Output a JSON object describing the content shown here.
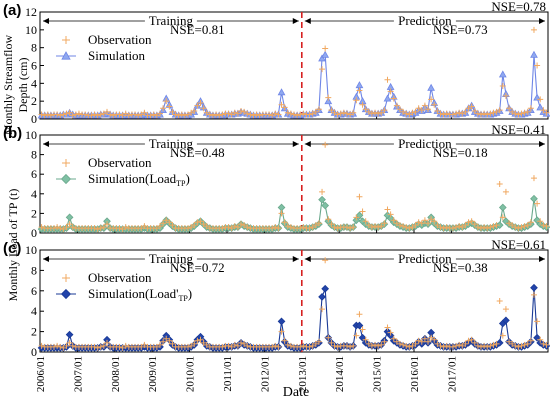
{
  "figure": {
    "xlabel": "Date",
    "ylabel_a": "Monthly Streamflow",
    "ylabel_a2": "Depth (cm)",
    "ylabel_bc": "Monthly Load of TP (t)",
    "x_ticks": [
      "2006/01",
      "2007/01",
      "2008/01",
      "2009/01",
      "2010/01",
      "2011/01",
      "2012/01",
      "2013/01",
      "2014/01",
      "2015/01",
      "2016/01",
      "2017/01"
    ],
    "split_label_train": "Training",
    "split_label_pred": "Prediction",
    "colors": {
      "observation": "#f0a860",
      "sim_a_fill": "#8fa8f0",
      "sim_a_line": "#6f86e6",
      "sim_b_fill": "#7fc0a4",
      "sim_b_line": "#6aa88c",
      "sim_c_fill": "#2244aa",
      "sim_c_line": "#1a3a96",
      "split": "#d62020"
    }
  },
  "chart_data": [
    {
      "panel": "(a)",
      "type": "line",
      "ylim": [
        0,
        12
      ],
      "yticks": [
        0,
        2,
        4,
        6,
        8,
        10,
        12
      ],
      "nse_overall": "NSE=0.78",
      "nse_train": "NSE=0.81",
      "nse_pred": "NSE=0.73",
      "legend": [
        "Observation",
        "Simulation"
      ],
      "series": [
        {
          "name": "Observation",
          "values": [
            0.5,
            0.4,
            0.5,
            0.4,
            0.5,
            0.5,
            0.4,
            0.5,
            0.6,
            0.7,
            0.4,
            0.5,
            0.6,
            0.5,
            0.5,
            0.4,
            0.4,
            0.5,
            0.4,
            0.5,
            0.6,
            0.8,
            0.5,
            0.4,
            0.5,
            0.5,
            0.4,
            0.6,
            0.4,
            0.5,
            0.5,
            0.4,
            0.5,
            0.7,
            0.4,
            0.4,
            0.5,
            0.4,
            0.6,
            1.2,
            2.0,
            1.4,
            0.8,
            0.5,
            0.4,
            0.5,
            0.4,
            0.5,
            0.7,
            0.9,
            1.5,
            1.8,
            1.2,
            0.7,
            0.5,
            0.4,
            0.5,
            0.4,
            0.5,
            0.6,
            0.6,
            0.5,
            0.7,
            0.6,
            0.9,
            0.8,
            0.6,
            0.5,
            0.4,
            0.5,
            0.4,
            0.5,
            0.5,
            0.5,
            0.4,
            0.6,
            0.5,
            1.6,
            1.3,
            0.7,
            0.6,
            0.5,
            0.4,
            0.5,
            0.6,
            0.5,
            0.5,
            0.6,
            0.8,
            1.1,
            5.6,
            7.9,
            2.4,
            1.0,
            0.7,
            0.5,
            0.6,
            0.7,
            0.6,
            0.5,
            0.7,
            2.1,
            3.2,
            1.6,
            1.1,
            0.8,
            0.6,
            0.7,
            0.6,
            0.7,
            1.0,
            4.4,
            3.1,
            2.3,
            1.5,
            1.1,
            0.8,
            0.6,
            0.5,
            0.7,
            0.8,
            1.2,
            1.0,
            1.5,
            1.1,
            2.2,
            1.6,
            0.9,
            0.6,
            0.5,
            0.6,
            0.5,
            0.5,
            0.6,
            0.7,
            0.6,
            0.8,
            1.2,
            1.4,
            0.9,
            0.6,
            0.5,
            0.6,
            0.5,
            0.6,
            0.7,
            0.8,
            1.0,
            3.7,
            2.6,
            1.2,
            0.8,
            0.6,
            0.5,
            0.6,
            0.7,
            0.8,
            1.2,
            10.0,
            6.0,
            2.2,
            1.0,
            0.7
          ]
        },
        {
          "name": "Simulation",
          "values": [
            0.4,
            0.4,
            0.4,
            0.4,
            0.4,
            0.4,
            0.4,
            0.5,
            0.5,
            0.7,
            0.5,
            0.4,
            0.4,
            0.4,
            0.4,
            0.4,
            0.4,
            0.4,
            0.4,
            0.5,
            0.5,
            0.6,
            0.5,
            0.4,
            0.4,
            0.4,
            0.4,
            0.4,
            0.4,
            0.4,
            0.4,
            0.4,
            0.4,
            0.5,
            0.4,
            0.4,
            0.4,
            0.4,
            0.5,
            1.0,
            2.3,
            1.6,
            0.8,
            0.5,
            0.4,
            0.4,
            0.4,
            0.4,
            0.5,
            0.8,
            1.5,
            2.0,
            1.3,
            0.7,
            0.5,
            0.4,
            0.4,
            0.4,
            0.4,
            0.5,
            0.5,
            0.5,
            0.6,
            0.6,
            0.8,
            0.7,
            0.6,
            0.5,
            0.4,
            0.4,
            0.4,
            0.4,
            0.4,
            0.4,
            0.4,
            0.5,
            0.5,
            3.0,
            1.2,
            0.6,
            0.5,
            0.4,
            0.4,
            0.4,
            0.5,
            0.5,
            0.5,
            0.6,
            0.7,
            1.0,
            6.8,
            7.2,
            2.0,
            1.0,
            0.7,
            0.5,
            0.5,
            0.6,
            0.6,
            0.5,
            0.6,
            2.5,
            3.8,
            2.0,
            1.1,
            0.8,
            0.6,
            0.6,
            0.6,
            0.7,
            1.0,
            2.3,
            3.6,
            2.5,
            1.4,
            1.0,
            0.7,
            0.6,
            0.5,
            0.6,
            0.7,
            1.0,
            0.9,
            1.3,
            1.0,
            3.5,
            1.8,
            0.9,
            0.6,
            0.5,
            0.5,
            0.5,
            0.5,
            0.5,
            0.6,
            0.6,
            0.7,
            1.2,
            1.5,
            0.8,
            0.6,
            0.5,
            0.5,
            0.5,
            0.5,
            0.6,
            0.7,
            0.9,
            5.0,
            2.8,
            1.2,
            0.8,
            0.6,
            0.5,
            0.5,
            0.6,
            0.7,
            1.0,
            7.2,
            2.4,
            1.3,
            0.8,
            0.6
          ]
        }
      ]
    },
    {
      "panel": "(b)",
      "type": "line",
      "ylim": [
        0,
        10
      ],
      "yticks": [
        0,
        2,
        4,
        6,
        8,
        10
      ],
      "nse_overall": "NSE=0.41",
      "nse_train": "NSE=0.48",
      "nse_pred": "NSE=0.18",
      "legend": [
        "Observation",
        "Simulation(Load",
        "TP",
        ")"
      ],
      "series": [
        {
          "name": "Observation",
          "values": [
            0.6,
            0.5,
            0.5,
            0.5,
            0.5,
            0.6,
            0.5,
            0.4,
            0.6,
            0.9,
            0.6,
            0.5,
            0.5,
            0.5,
            0.5,
            0.5,
            0.5,
            0.5,
            0.4,
            0.5,
            0.6,
            0.9,
            0.5,
            0.5,
            0.5,
            0.5,
            0.4,
            0.6,
            0.5,
            0.5,
            0.5,
            0.5,
            0.5,
            0.7,
            0.5,
            0.5,
            0.5,
            0.5,
            0.7,
            1.0,
            1.3,
            1.1,
            0.8,
            0.5,
            0.5,
            0.5,
            0.5,
            0.5,
            0.6,
            0.8,
            1.1,
            1.2,
            0.9,
            0.7,
            0.5,
            0.5,
            0.5,
            0.5,
            0.5,
            0.6,
            0.6,
            0.5,
            0.7,
            0.6,
            0.9,
            0.8,
            0.6,
            0.5,
            0.5,
            0.5,
            0.5,
            0.5,
            0.5,
            0.5,
            0.5,
            0.6,
            0.5,
            2.0,
            1.1,
            0.7,
            0.6,
            0.5,
            0.5,
            0.5,
            0.6,
            0.5,
            0.5,
            0.6,
            0.8,
            1.0,
            4.2,
            9.0,
            1.4,
            0.9,
            0.6,
            0.5,
            0.6,
            0.6,
            0.6,
            0.5,
            0.6,
            1.6,
            3.7,
            2.2,
            1.2,
            0.8,
            0.6,
            0.7,
            0.6,
            0.7,
            1.0,
            2.4,
            1.9,
            1.3,
            1.0,
            0.8,
            0.7,
            0.6,
            0.5,
            0.6,
            0.8,
            1.1,
            1.0,
            1.3,
            1.0,
            1.4,
            1.2,
            0.8,
            0.6,
            0.5,
            0.6,
            0.5,
            0.5,
            0.6,
            0.7,
            0.6,
            0.8,
            1.1,
            1.2,
            0.9,
            0.6,
            0.5,
            0.6,
            0.5,
            0.6,
            0.7,
            0.8,
            5.0,
            1.6,
            4.2,
            1.0,
            0.8,
            0.6,
            0.5,
            0.6,
            0.7,
            0.8,
            1.1,
            5.6,
            3.0,
            1.2,
            0.8,
            0.7
          ]
        },
        {
          "name": "Simulation(LoadTP)",
          "values": [
            0.4,
            0.4,
            0.4,
            0.4,
            0.4,
            0.4,
            0.4,
            0.4,
            0.5,
            1.6,
            0.6,
            0.4,
            0.4,
            0.4,
            0.4,
            0.4,
            0.4,
            0.4,
            0.4,
            0.5,
            0.5,
            1.2,
            0.5,
            0.4,
            0.4,
            0.4,
            0.4,
            0.4,
            0.4,
            0.4,
            0.4,
            0.4,
            0.4,
            0.5,
            0.4,
            0.4,
            0.4,
            0.4,
            0.5,
            0.9,
            1.3,
            1.0,
            0.7,
            0.5,
            0.4,
            0.4,
            0.4,
            0.4,
            0.5,
            0.7,
            1.0,
            1.2,
            0.9,
            0.6,
            0.5,
            0.4,
            0.4,
            0.4,
            0.4,
            0.5,
            0.5,
            0.5,
            0.6,
            0.6,
            0.9,
            0.7,
            0.6,
            0.5,
            0.4,
            0.4,
            0.4,
            0.4,
            0.4,
            0.4,
            0.4,
            0.5,
            0.5,
            2.6,
            1.0,
            0.6,
            0.5,
            0.4,
            0.4,
            0.4,
            0.5,
            0.5,
            0.5,
            0.6,
            0.7,
            0.9,
            3.4,
            2.8,
            1.2,
            0.8,
            0.6,
            0.5,
            0.5,
            0.6,
            0.6,
            0.5,
            0.6,
            1.3,
            1.8,
            1.2,
            0.9,
            0.7,
            0.6,
            0.6,
            0.6,
            0.7,
            0.9,
            1.8,
            1.5,
            1.1,
            0.9,
            0.7,
            0.6,
            0.5,
            0.5,
            0.6,
            0.7,
            0.9,
            0.8,
            1.0,
            0.9,
            1.6,
            1.0,
            0.7,
            0.6,
            0.5,
            0.5,
            0.5,
            0.5,
            0.5,
            0.6,
            0.6,
            0.7,
            0.9,
            1.0,
            0.8,
            0.6,
            0.5,
            0.5,
            0.5,
            0.5,
            0.6,
            0.7,
            0.8,
            2.6,
            1.2,
            0.9,
            0.7,
            0.6,
            0.5,
            0.5,
            0.6,
            0.7,
            0.9,
            3.5,
            1.3,
            0.9,
            0.7,
            0.6
          ]
        }
      ]
    },
    {
      "panel": "(c)",
      "type": "line",
      "ylim": [
        0,
        10
      ],
      "yticks": [
        0,
        2,
        4,
        6,
        8,
        10
      ],
      "nse_overall": "NSE=0.61",
      "nse_train": "NSE=0.72",
      "nse_pred": "NSE=0.38",
      "legend": [
        "Observation",
        "Simulation(Load'",
        "TP",
        ")"
      ],
      "series": [
        {
          "name": "Observation",
          "values": [
            0.6,
            0.5,
            0.5,
            0.5,
            0.5,
            0.6,
            0.5,
            0.4,
            0.6,
            0.9,
            0.6,
            0.5,
            0.5,
            0.5,
            0.5,
            0.5,
            0.5,
            0.5,
            0.4,
            0.5,
            0.6,
            0.9,
            0.5,
            0.5,
            0.5,
            0.5,
            0.4,
            0.6,
            0.5,
            0.5,
            0.5,
            0.5,
            0.5,
            0.7,
            0.5,
            0.5,
            0.5,
            0.5,
            0.7,
            1.0,
            1.3,
            1.1,
            0.8,
            0.5,
            0.5,
            0.5,
            0.5,
            0.5,
            0.6,
            0.8,
            1.1,
            1.2,
            0.9,
            0.7,
            0.5,
            0.5,
            0.5,
            0.5,
            0.5,
            0.6,
            0.6,
            0.5,
            0.7,
            0.6,
            0.9,
            0.8,
            0.6,
            0.5,
            0.5,
            0.5,
            0.5,
            0.5,
            0.5,
            0.5,
            0.5,
            0.6,
            0.5,
            2.0,
            1.1,
            0.7,
            0.6,
            0.5,
            0.5,
            0.5,
            0.6,
            0.5,
            0.5,
            0.6,
            0.8,
            1.0,
            4.2,
            9.0,
            1.4,
            0.9,
            0.6,
            0.5,
            0.6,
            0.6,
            0.6,
            0.5,
            0.6,
            1.6,
            3.7,
            2.2,
            1.2,
            0.8,
            0.6,
            0.7,
            0.6,
            0.7,
            1.0,
            2.4,
            1.9,
            1.3,
            1.0,
            0.8,
            0.7,
            0.6,
            0.5,
            0.6,
            0.8,
            1.1,
            1.0,
            1.3,
            1.0,
            1.4,
            1.2,
            0.8,
            0.6,
            0.5,
            0.6,
            0.5,
            0.5,
            0.6,
            0.7,
            0.6,
            0.8,
            1.1,
            1.2,
            0.9,
            0.6,
            0.5,
            0.6,
            0.5,
            0.6,
            0.7,
            0.8,
            5.0,
            1.6,
            4.2,
            1.0,
            0.8,
            0.6,
            0.5,
            0.6,
            0.7,
            0.8,
            1.1,
            5.6,
            3.0,
            1.2,
            0.8,
            0.7
          ]
        },
        {
          "name": "Simulation(Load'TP)",
          "values": [
            0.4,
            0.4,
            0.4,
            0.4,
            0.4,
            0.4,
            0.4,
            0.4,
            0.5,
            1.7,
            0.6,
            0.4,
            0.4,
            0.4,
            0.4,
            0.4,
            0.4,
            0.4,
            0.4,
            0.5,
            0.5,
            1.2,
            0.5,
            0.4,
            0.4,
            0.4,
            0.4,
            0.4,
            0.4,
            0.4,
            0.4,
            0.4,
            0.4,
            0.5,
            0.4,
            0.4,
            0.4,
            0.4,
            0.5,
            1.1,
            1.6,
            1.2,
            0.7,
            0.5,
            0.4,
            0.4,
            0.4,
            0.4,
            0.5,
            0.7,
            1.2,
            1.5,
            1.0,
            0.6,
            0.5,
            0.4,
            0.4,
            0.4,
            0.4,
            0.5,
            0.5,
            0.5,
            0.6,
            0.6,
            0.9,
            0.7,
            0.6,
            0.5,
            0.4,
            0.4,
            0.4,
            0.4,
            0.4,
            0.4,
            0.4,
            0.5,
            0.5,
            3.0,
            1.0,
            0.6,
            0.5,
            0.4,
            0.4,
            0.4,
            0.5,
            0.5,
            0.5,
            0.6,
            0.7,
            0.9,
            5.4,
            6.2,
            1.4,
            0.9,
            0.6,
            0.5,
            0.5,
            0.6,
            0.6,
            0.5,
            0.6,
            2.6,
            2.6,
            1.4,
            0.9,
            0.7,
            0.6,
            0.6,
            0.6,
            0.7,
            1.1,
            2.0,
            1.6,
            1.1,
            0.9,
            0.7,
            0.6,
            0.5,
            0.5,
            0.6,
            0.7,
            1.0,
            0.8,
            1.3,
            0.9,
            1.9,
            1.1,
            0.7,
            0.6,
            0.5,
            0.5,
            0.5,
            0.5,
            0.5,
            0.6,
            0.6,
            0.7,
            0.9,
            1.1,
            0.8,
            0.6,
            0.5,
            0.5,
            0.5,
            0.5,
            0.6,
            0.7,
            0.9,
            2.8,
            3.1,
            1.0,
            0.7,
            0.6,
            0.5,
            0.5,
            0.6,
            0.7,
            1.0,
            6.3,
            1.4,
            0.9,
            0.7,
            0.6
          ]
        }
      ]
    }
  ]
}
